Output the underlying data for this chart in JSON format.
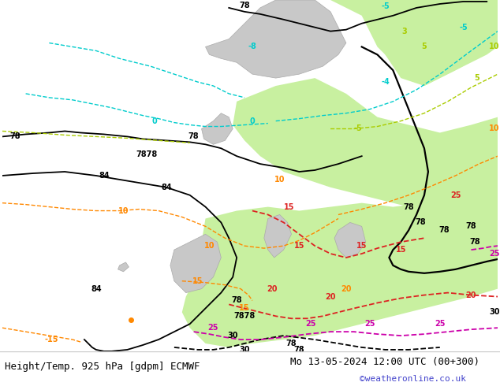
{
  "title_left": "Height/Temp. 925 hPa [gdpm] ECMWF",
  "title_right": "Mo 13-05-2024 12:00 UTC (00+300)",
  "credit": "©weatheronline.co.uk",
  "bg_color": "#e8e8e8",
  "map_bg_light_green": "#c8f0a0",
  "map_bg_gray": "#c8c8c8",
  "map_border_color": "#888888",
  "footer_bg": "#ffffff",
  "footer_text_color": "#000000",
  "credit_color": "#4444cc",
  "contour_black": "#000000",
  "contour_green": "#00aa88",
  "contour_yellow_green": "#aacc00",
  "contour_orange": "#ff8800",
  "contour_red": "#dd2222",
  "contour_magenta": "#cc00aa",
  "contour_cyan": "#00cccc",
  "label_fontsize": 7,
  "footer_fontsize": 9,
  "fig_width": 6.34,
  "fig_height": 4.9,
  "dpi": 100
}
